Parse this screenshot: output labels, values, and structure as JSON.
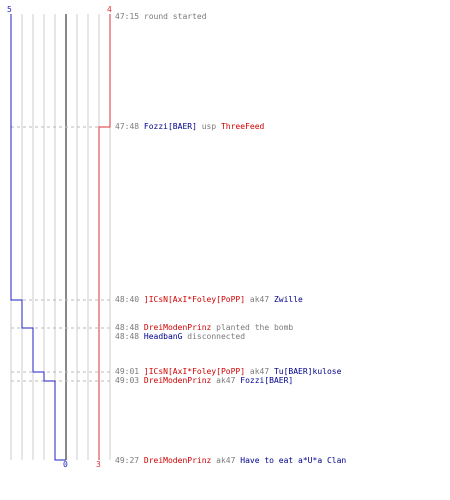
{
  "colors": {
    "blue_team": "#2020c0",
    "red_team": "#e03030",
    "grid": "#cccccc",
    "center_line": "#888888",
    "dashed": "#bbbbbb",
    "timestamp": "#7a7a7a",
    "blue_name": "#00008b",
    "red_name": "#d00000"
  },
  "counters": {
    "blue_start": "5",
    "red_start": "4",
    "blue_end": "0",
    "red_end": "3"
  },
  "events": [
    {
      "time": "47:15",
      "parts": [
        {
          "text": "round started",
          "team": "none"
        }
      ]
    },
    {
      "time": "47:48",
      "parts": [
        {
          "text": "Fozzi[BAER]",
          "team": "blue"
        },
        {
          "text": " usp ",
          "team": "none"
        },
        {
          "text": "ThreeFeed",
          "team": "red"
        }
      ]
    },
    {
      "time": "48:40",
      "parts": [
        {
          "text": "]ICsN[AxI*Foley[PoPP]",
          "team": "red"
        },
        {
          "text": " ak47 ",
          "team": "none"
        },
        {
          "text": "Zwille",
          "team": "blue"
        }
      ]
    },
    {
      "time": "48:48",
      "parts": [
        {
          "text": "DreiModenPrinz",
          "team": "red"
        },
        {
          "text": " planted the bomb",
          "team": "gray"
        }
      ]
    },
    {
      "time": "48:48",
      "parts": [
        {
          "text": "HeadbanG",
          "team": "blue"
        },
        {
          "text": " disconnected",
          "team": "gray"
        }
      ]
    },
    {
      "time": "49:01",
      "parts": [
        {
          "text": "]ICsN[AxI*Foley[PoPP]",
          "team": "red"
        },
        {
          "text": " ak47 ",
          "team": "none"
        },
        {
          "text": "Tu[BAER]kulose",
          "team": "blue"
        }
      ]
    },
    {
      "time": "49:03",
      "parts": [
        {
          "text": "DreiModenPrinz",
          "team": "red"
        },
        {
          "text": " ak47 ",
          "team": "none"
        },
        {
          "text": "Fozzi[BAER]",
          "team": "blue"
        }
      ]
    },
    {
      "time": "49:27",
      "parts": [
        {
          "text": "DreiModenPrinz",
          "team": "red"
        },
        {
          "text": " ak47 ",
          "team": "none"
        },
        {
          "text": "Have to eat a*U*a Clan",
          "team": "blue"
        }
      ]
    }
  ]
}
